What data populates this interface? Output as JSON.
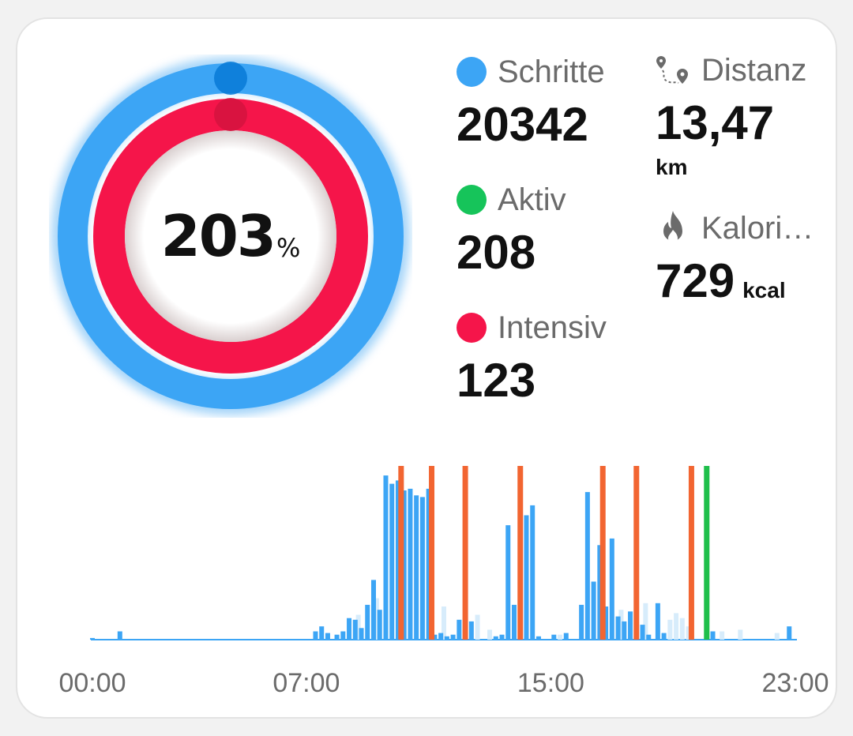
{
  "colors": {
    "steps": "#3ca5f5",
    "active": "#16c45a",
    "intense": "#f5154a",
    "marker_orange": "#f26531",
    "marker_green": "#1fbf4b",
    "bar_light": "#d7ecfb"
  },
  "ring": {
    "percent": "203",
    "percent_unit": "%",
    "steps_progress": 2.03,
    "intense_progress": 1.23
  },
  "stats": {
    "steps": {
      "label": "Schritte",
      "value": "20342"
    },
    "active": {
      "label": "Aktiv",
      "value": "208"
    },
    "intense": {
      "label": "Intensiv",
      "value": "123"
    },
    "distance": {
      "label": "Distanz",
      "value": "13,47",
      "unit": "km",
      "icon": "route-icon"
    },
    "calories": {
      "label": "Kalori…",
      "value": "729",
      "unit": "kcal",
      "icon": "flame-icon"
    }
  },
  "chart_data": {
    "type": "bar",
    "x_ticks": [
      "00:00",
      "07:00",
      "15:00",
      "23:00"
    ],
    "x_range_hours": [
      0,
      23
    ],
    "series": [
      {
        "name": "",
        "bars": [
          [
            0.0,
            0.01
          ],
          [
            0.9,
            0.05
          ],
          [
            7.3,
            0.05
          ],
          [
            7.5,
            0.08
          ],
          [
            7.7,
            0.04
          ],
          [
            8.0,
            0.03
          ],
          [
            8.2,
            0.05
          ],
          [
            8.4,
            0.13
          ],
          [
            8.6,
            0.12
          ],
          [
            8.8,
            0.07
          ],
          [
            9.0,
            0.21
          ],
          [
            9.2,
            0.36
          ],
          [
            9.4,
            0.18
          ],
          [
            9.6,
            0.99
          ],
          [
            9.8,
            0.94
          ],
          [
            10.0,
            0.96
          ],
          [
            10.2,
            0.9
          ],
          [
            10.4,
            0.91
          ],
          [
            10.6,
            0.87
          ],
          [
            10.8,
            0.86
          ],
          [
            11.0,
            0.91
          ],
          [
            11.2,
            0.03
          ],
          [
            11.4,
            0.04
          ],
          [
            11.6,
            0.02
          ],
          [
            11.8,
            0.03
          ],
          [
            12.0,
            0.12
          ],
          [
            12.2,
            0.1
          ],
          [
            12.4,
            0.11
          ],
          [
            13.2,
            0.02
          ],
          [
            13.4,
            0.03
          ],
          [
            13.6,
            0.69
          ],
          [
            13.8,
            0.21
          ],
          [
            14.0,
            0.18
          ],
          [
            14.2,
            0.75
          ],
          [
            14.4,
            0.81
          ],
          [
            14.6,
            0.02
          ],
          [
            15.1,
            0.03
          ],
          [
            15.5,
            0.04
          ],
          [
            16.0,
            0.21
          ],
          [
            16.2,
            0.89
          ],
          [
            16.4,
            0.35
          ],
          [
            16.6,
            0.57
          ],
          [
            16.8,
            0.2
          ],
          [
            17.0,
            0.61
          ],
          [
            17.2,
            0.14
          ],
          [
            17.4,
            0.11
          ],
          [
            17.6,
            0.17
          ],
          [
            17.8,
            0.04
          ],
          [
            18.0,
            0.09
          ],
          [
            18.2,
            0.03
          ],
          [
            18.5,
            0.22
          ],
          [
            18.7,
            0.04
          ],
          [
            20.1,
            0.51
          ],
          [
            20.3,
            0.05
          ],
          [
            22.8,
            0.08
          ]
        ]
      },
      {
        "name": "",
        "bars": [
          [
            8.7,
            0.15
          ],
          [
            9.3,
            0.25
          ],
          [
            11.5,
            0.2
          ],
          [
            12.6,
            0.15
          ],
          [
            13.0,
            0.06
          ],
          [
            15.3,
            0.03
          ],
          [
            17.3,
            0.18
          ],
          [
            17.8,
            0.38
          ],
          [
            18.1,
            0.22
          ],
          [
            18.9,
            0.12
          ],
          [
            19.1,
            0.16
          ],
          [
            19.3,
            0.13
          ],
          [
            19.5,
            0.08
          ],
          [
            20.6,
            0.05
          ],
          [
            21.2,
            0.06
          ],
          [
            22.4,
            0.04
          ]
        ]
      }
    ],
    "markers": [
      {
        "x": 10.1,
        "color": "orange"
      },
      {
        "x": 11.1,
        "color": "orange"
      },
      {
        "x": 12.2,
        "color": "orange"
      },
      {
        "x": 14.0,
        "color": "orange"
      },
      {
        "x": 16.7,
        "color": "orange"
      },
      {
        "x": 17.8,
        "color": "orange"
      },
      {
        "x": 19.6,
        "color": "orange"
      },
      {
        "x": 20.1,
        "color": "green"
      }
    ]
  }
}
